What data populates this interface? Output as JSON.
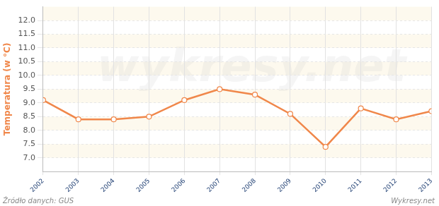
{
  "chart_data": {
    "type": "line",
    "y_label": "Temperatura (w °C)",
    "source": "Źródło danych: GUS",
    "credit": "Wykresy.net",
    "watermark": "wykresy.net",
    "categories": [
      "2002",
      "2003",
      "2004",
      "2005",
      "2006",
      "2007",
      "2008",
      "2009",
      "2010",
      "2011",
      "2012",
      "2013"
    ],
    "values": [
      9.1,
      8.4,
      8.4,
      8.5,
      9.1,
      9.5,
      9.3,
      8.6,
      7.4,
      8.8,
      8.4,
      8.7
    ],
    "color": "#f0874a",
    "marker": "circle",
    "ylim": [
      6.5,
      12.5
    ],
    "yticks": [
      {
        "value": 7,
        "label": "7.0"
      },
      {
        "value": 7.5,
        "label": "7.5"
      },
      {
        "value": 8,
        "label": "8.0"
      },
      {
        "value": 8.5,
        "label": "8.5"
      },
      {
        "value": 9,
        "label": "9.0"
      },
      {
        "value": 9.5,
        "label": "9.5"
      },
      {
        "value": 10,
        "label": "10.0"
      },
      {
        "value": 10.5,
        "label": "10.5"
      },
      {
        "value": 11,
        "label": "11.0"
      },
      {
        "value": 11.5,
        "label": "11.5"
      },
      {
        "value": 12,
        "label": "12.0"
      }
    ],
    "grid": true
  }
}
